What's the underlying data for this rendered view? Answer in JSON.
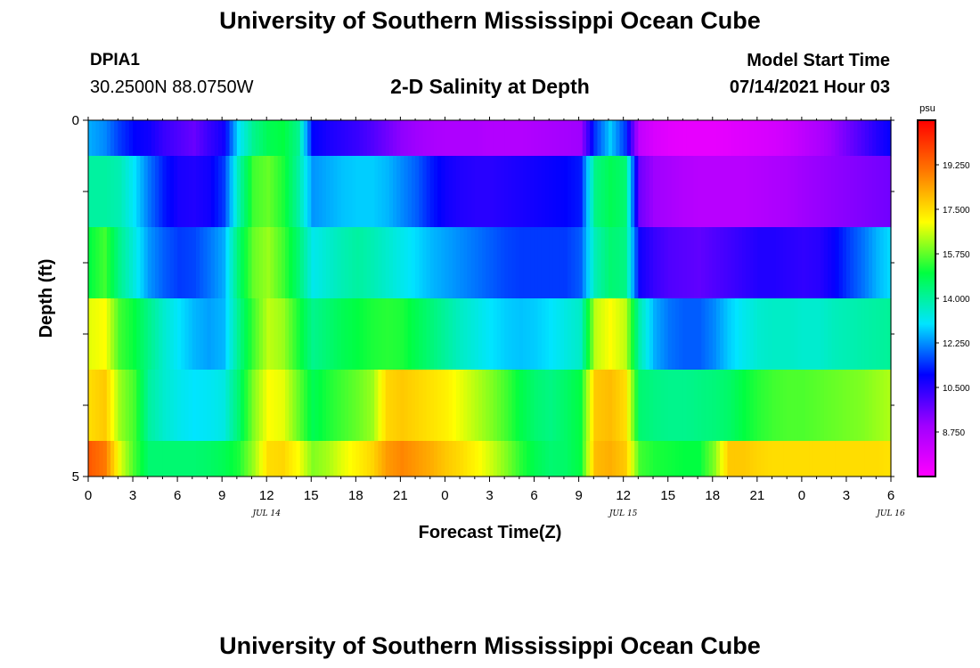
{
  "page": {
    "top_title": "University of Southern Mississippi Ocean Cube",
    "bottom_title": "University of Southern Mississippi Ocean Cube",
    "station_id": "DPIA1",
    "station_coords": "30.2500N  88.0750W",
    "model_start_label": "Model Start Time",
    "model_start_value": "07/14/2021 Hour 03"
  },
  "chart_data": {
    "type": "heatmap",
    "title": "2-D Salinity at Depth",
    "xlabel": "Forecast Time(Z)",
    "ylabel": "Depth (ft)",
    "x_tick_labels": [
      "0",
      "3",
      "6",
      "9",
      "12",
      "15",
      "18",
      "21",
      "0",
      "3",
      "6",
      "9",
      "12",
      "15",
      "18",
      "21",
      "0",
      "3",
      "6"
    ],
    "date_labels": [
      "JUL 14",
      "JUL 15",
      "JUL 16"
    ],
    "y_tick_labels": [
      "0",
      "5"
    ],
    "ylim": [
      0,
      5
    ],
    "colorbar": {
      "unit": "psu",
      "tick_labels": [
        "19.250",
        "17.500",
        "15.750",
        "14.000",
        "12.250",
        "10.500",
        "8.750"
      ],
      "ticks": [
        19.25,
        17.5,
        15.75,
        14.0,
        12.25,
        10.5,
        8.75
      ],
      "range": [
        7.0,
        21.0
      ]
    },
    "time_hours": [
      0,
      1,
      2,
      3,
      4,
      5,
      6,
      7,
      8,
      9,
      10,
      11,
      12,
      13,
      14,
      15,
      16,
      17,
      18,
      19,
      20,
      21,
      22,
      23,
      24,
      25,
      26,
      27,
      28,
      29,
      30,
      31,
      32,
      33,
      34,
      35,
      36,
      37,
      38,
      39,
      40,
      41,
      42,
      43,
      44,
      45,
      46,
      47,
      48,
      49,
      50,
      51,
      52,
      53,
      54
    ],
    "depth_layers": [
      {
        "name": "layer-1",
        "depth_range_ft": [
          0.0,
          0.5
        ],
        "values": [
          12.5,
          12.2,
          11.5,
          11.0,
          10.8,
          10.3,
          10.0,
          9.7,
          10.3,
          10.8,
          13.0,
          14.2,
          14.8,
          15.0,
          14.2,
          11.0,
          10.7,
          10.5,
          10.3,
          10.0,
          9.6,
          9.2,
          9.0,
          8.8,
          8.7,
          8.7,
          8.7,
          8.6,
          8.6,
          8.6,
          8.7,
          8.8,
          8.9,
          9.0,
          11.5,
          12.8,
          11.5,
          8.3,
          7.8,
          7.6,
          7.5,
          7.5,
          7.5,
          7.6,
          7.7,
          7.8,
          7.9,
          8.1,
          8.4,
          8.7,
          9.1,
          9.6,
          10.1,
          10.6,
          11.0
        ]
      },
      {
        "name": "layer-2",
        "depth_range_ft": [
          0.5,
          1.5
        ],
        "values": [
          14.0,
          14.0,
          13.8,
          13.0,
          12.0,
          11.2,
          10.7,
          10.6,
          10.8,
          11.5,
          13.8,
          15.5,
          15.8,
          15.2,
          14.0,
          12.3,
          12.5,
          12.7,
          12.8,
          12.8,
          12.6,
          12.2,
          11.8,
          11.2,
          10.8,
          10.6,
          10.5,
          10.5,
          10.6,
          10.7,
          10.8,
          10.9,
          11.0,
          11.2,
          14.3,
          14.8,
          14.5,
          9.6,
          9.0,
          8.8,
          8.6,
          8.5,
          8.5,
          8.5,
          8.5,
          8.6,
          8.7,
          8.8,
          9.0,
          9.1,
          9.2,
          9.3,
          9.4,
          9.5,
          9.6
        ]
      },
      {
        "name": "layer-3",
        "depth_range_ft": [
          1.5,
          2.5
        ],
        "values": [
          15.0,
          15.5,
          14.2,
          13.3,
          12.3,
          11.8,
          11.5,
          11.6,
          12.0,
          12.5,
          14.5,
          15.8,
          16.2,
          15.5,
          14.5,
          13.2,
          13.5,
          13.8,
          14.0,
          13.8,
          13.5,
          13.2,
          12.9,
          12.6,
          12.4,
          12.2,
          12.0,
          11.8,
          11.6,
          11.5,
          11.5,
          11.5,
          11.5,
          11.8,
          13.8,
          14.5,
          14.3,
          10.8,
          10.3,
          10.0,
          9.9,
          9.8,
          10.0,
          10.2,
          10.4,
          10.6,
          10.6,
          10.5,
          10.4,
          10.5,
          10.9,
          11.5,
          12.0,
          12.6,
          13.0
        ]
      },
      {
        "name": "layer-4",
        "depth_range_ft": [
          2.5,
          3.5
        ],
        "values": [
          16.8,
          17.0,
          15.5,
          15.0,
          14.2,
          13.5,
          13.0,
          12.6,
          12.4,
          12.6,
          14.2,
          15.5,
          16.5,
          16.2,
          15.2,
          14.2,
          14.5,
          14.8,
          15.0,
          15.2,
          15.3,
          15.2,
          14.8,
          14.4,
          14.0,
          13.6,
          13.3,
          13.0,
          12.8,
          12.7,
          12.8,
          13.0,
          13.3,
          13.6,
          16.5,
          17.0,
          16.5,
          13.8,
          12.5,
          12.0,
          11.8,
          11.8,
          12.2,
          12.8,
          13.2,
          13.5,
          13.6,
          13.6,
          13.5,
          13.5,
          13.7,
          13.8,
          13.9,
          14.0,
          14.1
        ]
      },
      {
        "name": "layer-5",
        "depth_range_ft": [
          3.5,
          4.5
        ],
        "values": [
          17.5,
          17.8,
          16.2,
          15.5,
          14.0,
          13.5,
          13.2,
          13.0,
          13.1,
          13.3,
          14.5,
          16.0,
          17.0,
          16.8,
          15.8,
          14.8,
          15.2,
          15.5,
          15.8,
          16.2,
          17.6,
          17.8,
          17.6,
          17.4,
          17.2,
          16.8,
          16.4,
          16.0,
          15.5,
          14.9,
          14.5,
          14.3,
          14.6,
          15.0,
          17.8,
          18.0,
          17.5,
          14.5,
          14.3,
          14.2,
          14.2,
          14.3,
          14.4,
          14.6,
          15.0,
          15.3,
          15.5,
          15.6,
          15.6,
          15.7,
          15.8,
          15.9,
          16.0,
          16.2,
          16.4
        ]
      },
      {
        "name": "layer-6",
        "depth_range_ft": [
          4.5,
          5.0
        ],
        "values": [
          19.5,
          19.0,
          16.8,
          15.5,
          14.5,
          14.5,
          14.5,
          14.5,
          14.6,
          14.8,
          15.2,
          16.2,
          17.5,
          17.6,
          17.0,
          16.0,
          16.3,
          16.8,
          17.2,
          17.6,
          18.5,
          18.8,
          18.5,
          18.2,
          17.8,
          17.5,
          17.1,
          16.6,
          16.0,
          15.3,
          14.8,
          14.5,
          14.6,
          15.0,
          18.0,
          18.2,
          17.8,
          15.5,
          15.2,
          15.1,
          15.0,
          15.0,
          16.0,
          17.8,
          17.8,
          17.6,
          17.5,
          17.5,
          17.5,
          17.5,
          17.5,
          17.5,
          17.5,
          17.5,
          17.4
        ]
      }
    ]
  },
  "colors": {
    "colorscale": [
      "#ff00ff",
      "#a000ff",
      "#0000ff",
      "#00e5ff",
      "#00ff40",
      "#ffff00",
      "#ff7800",
      "#ff0000"
    ]
  }
}
